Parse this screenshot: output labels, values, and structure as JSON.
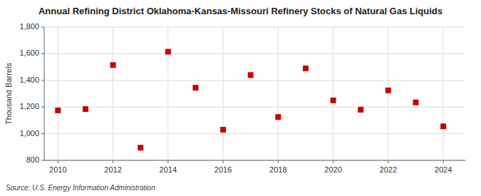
{
  "chart_data": {
    "type": "scatter",
    "title": "Annual Refining District Oklahoma-Kansas-Missouri Refinery Stocks of Natural Gas Liquids",
    "y_label": "Thousand Barrels",
    "annotations": [
      "Source: U.S. Energy Information Administration"
    ],
    "x": [
      2010,
      2011,
      2012,
      2013,
      2014,
      2015,
      2016,
      2017,
      2018,
      2019,
      2020,
      2021,
      2022,
      2023,
      2024
    ],
    "values": [
      1175,
      1185,
      1515,
      895,
      1615,
      1345,
      1030,
      1440,
      1125,
      1490,
      1250,
      1180,
      1325,
      1235,
      1055
    ],
    "color": "#cc0000",
    "marker": "square",
    "grid": true,
    "xlim": [
      2009.5,
      2024.8
    ],
    "xticks": [
      2010,
      2012,
      2014,
      2016,
      2018,
      2020,
      2022,
      2024
    ],
    "ylim": [
      800,
      1800
    ],
    "yticks": [
      800,
      {
        "value": 1000,
        "label": "1,000"
      },
      {
        "value": 1200,
        "label": "1,200"
      },
      {
        "value": 1400,
        "label": "1,400"
      },
      {
        "value": 1600,
        "label": "1,600"
      },
      {
        "value": 1800,
        "label": "1,800"
      }
    ]
  }
}
